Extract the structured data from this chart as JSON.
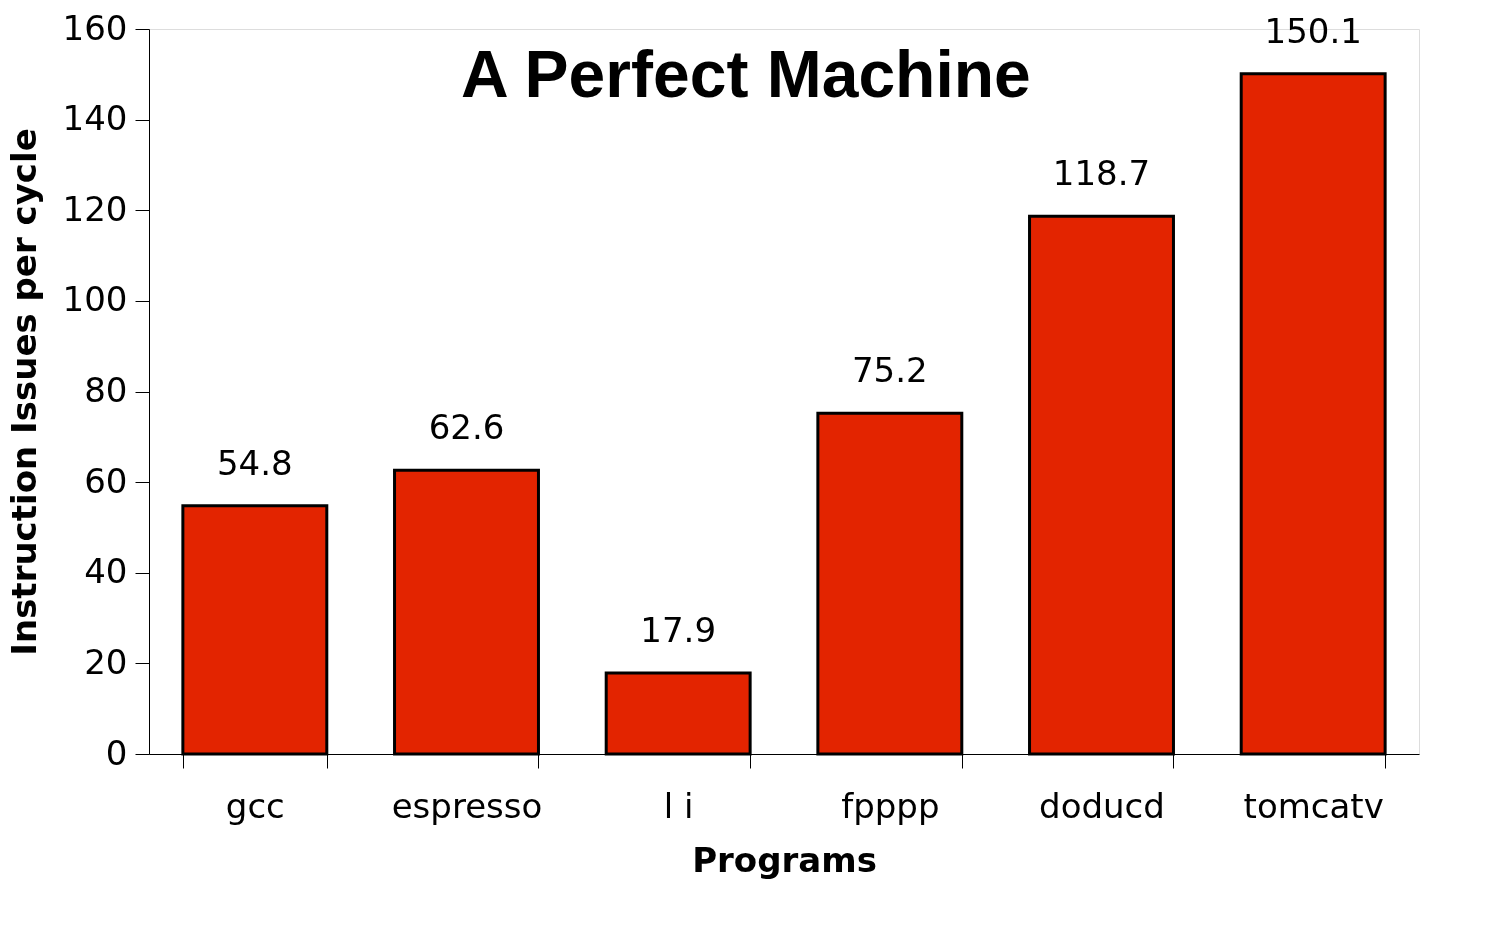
{
  "chart_data": {
    "type": "bar",
    "title": "A Perfect Machine",
    "xlabel": "Programs",
    "ylabel": "Instruction  Issues  per  cycle",
    "categories": [
      "gcc",
      "espresso",
      "l i",
      "fpppp",
      "doducd",
      "tomcatv"
    ],
    "values": [
      54.8,
      62.6,
      17.9,
      75.2,
      118.7,
      150.1
    ],
    "color": "#e32400",
    "ylim": [
      0,
      160
    ],
    "yticks": [
      0,
      20,
      40,
      60,
      80,
      100,
      120,
      140,
      160
    ],
    "grid": false,
    "data_labels": true
  }
}
